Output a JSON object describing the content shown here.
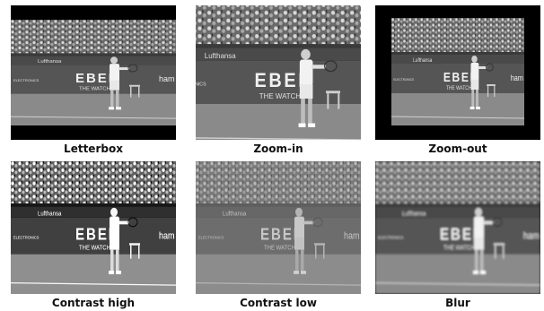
{
  "panels": [
    {
      "label": "Letterbox"
    },
    {
      "label": "Zoom-in"
    },
    {
      "label": "Zoom-out"
    },
    {
      "label": "Contrast high"
    },
    {
      "label": "Contrast low"
    },
    {
      "label": "Blur"
    }
  ],
  "scene": {
    "sponsor_small": "Lufthansa",
    "sponsor_big": "EBEL",
    "sponsor_sub": "THE WATCH",
    "sponsor_left": "ELECTRONICS",
    "sponsor_right": "ham"
  }
}
